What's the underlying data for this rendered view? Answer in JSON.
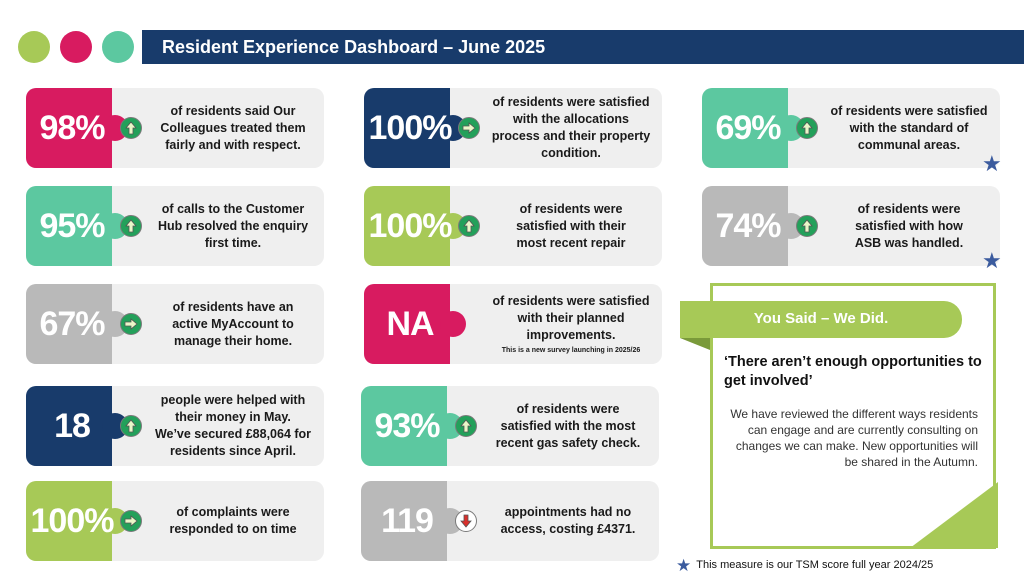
{
  "header": {
    "title": "Resident Experience Dashboard – June 2025",
    "dot_colors": [
      "#a7c957",
      "#d81b60",
      "#5cc8a0"
    ]
  },
  "cards": [
    {
      "value": "98%",
      "text": [
        "of residents said Our",
        "Colleagues treated them",
        "fairly and with respect."
      ],
      "color": "#d81b60",
      "trend": "up"
    },
    {
      "value": "95%",
      "text": [
        "of calls to the Customer",
        "Hub resolved the enquiry",
        "first time."
      ],
      "color": "#5cc8a0",
      "trend": "up"
    },
    {
      "value": "67%",
      "text": [
        "of residents have an",
        "active MyAccount to",
        "manage their home."
      ],
      "color": "#b9b9b9",
      "trend": "right"
    },
    {
      "value": "18",
      "text": [
        "people were helped with",
        "their money in May.",
        "We’ve secured £88,064 for",
        "residents since April."
      ],
      "color": "#183b6b",
      "trend": "up"
    },
    {
      "value": "100%",
      "text": [
        "of complaints were",
        "responded to on time"
      ],
      "color": "#a7c957",
      "trend": "right"
    },
    {
      "value": "100%",
      "text": [
        "of residents were satisfied",
        "with the allocations",
        "process and their property",
        "condition."
      ],
      "color": "#183b6b",
      "trend": "right"
    },
    {
      "value": "100%",
      "text": [
        "of residents were",
        "satisfied with their",
        "most recent repair"
      ],
      "color": "#a7c957",
      "trend": "up"
    },
    {
      "value": "NA",
      "text": [
        "of residents were satisfied",
        "with their planned",
        "improvements."
      ],
      "note": "This is a new survey launching in 2025/26",
      "color": "#d81b60",
      "trend": "none"
    },
    {
      "value": "93%",
      "text": [
        "of residents were",
        "satisfied with the most",
        "recent gas safety check."
      ],
      "color": "#5cc8a0",
      "trend": "up"
    },
    {
      "value": "119",
      "text": [
        "appointments had no",
        "access, costing £4371."
      ],
      "color": "#b9b9b9",
      "trend": "down"
    },
    {
      "value": "69%",
      "text": [
        "of residents were satisfied",
        "with the standard of",
        "communal areas."
      ],
      "color": "#5cc8a0",
      "trend": "up",
      "star": true
    },
    {
      "value": "74%",
      "text": [
        "of residents were",
        "satisfied with how",
        "ASB was handled."
      ],
      "color": "#b9b9b9",
      "trend": "up",
      "star": true
    }
  ],
  "you_said": {
    "title": "You Said – We Did.",
    "quote": "‘There aren’t enough opportunities to get involved’",
    "body": "We have reviewed the different ways residents can engage and are currently consulting on changes we can make. New opportunities will be shared in the Autumn."
  },
  "footnote": "This measure is our TSM score full year 2024/25"
}
